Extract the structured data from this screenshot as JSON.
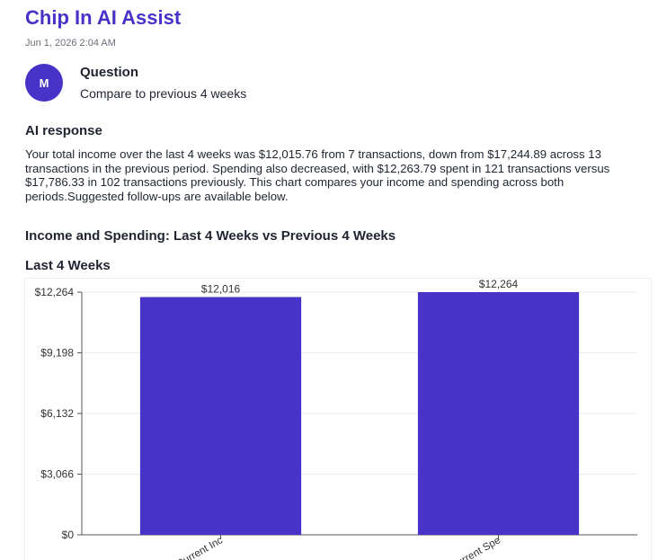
{
  "app": {
    "title": "Chip In AI Assist",
    "timestamp": "Jun 1, 2026 2:04 AM"
  },
  "question": {
    "avatar_initial": "M",
    "heading": "Question",
    "text": "Compare to previous 4 weeks"
  },
  "ai_response": {
    "heading": "AI response",
    "text": "Your total income over the last 4 weeks was $12,015.76 from 7 transactions, down from $17,244.89 across 13 transactions in the previous period. Spending also decreased, with $12,263.79 spent in 121 transactions versus $17,786.33 in 102 transactions previously. This chart compares your income and spending across both periods.Suggested follow-ups are available below."
  },
  "chart": {
    "title": "Income and Spending: Last 4 Weeks vs Previous 4 Weeks",
    "section_title": "Last 4 Weeks"
  },
  "colors": {
    "accent": "#4733c8",
    "bar": "#4733c8"
  },
  "chart_data": {
    "type": "bar",
    "title": "Last 4 Weeks",
    "categories": [
      "Current Inc",
      "Current Spe"
    ],
    "values": [
      12016,
      12264
    ],
    "value_labels": [
      "$12,016",
      "$12,264"
    ],
    "yticks": [
      0,
      3066,
      6132,
      9198,
      12264
    ],
    "ytick_labels": [
      "$0",
      "$3,066",
      "$6,132",
      "$9,198",
      "$12,264"
    ],
    "ylim": [
      0,
      12264
    ],
    "grid": true,
    "xlabel": "",
    "ylabel": ""
  }
}
